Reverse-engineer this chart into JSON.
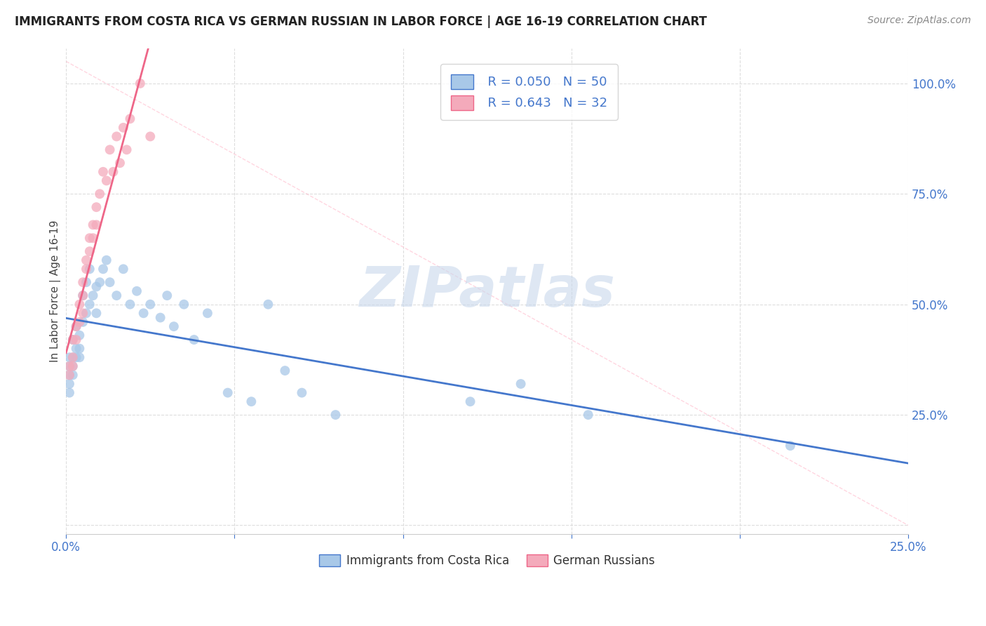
{
  "title": "IMMIGRANTS FROM COSTA RICA VS GERMAN RUSSIAN IN LABOR FORCE | AGE 16-19 CORRELATION CHART",
  "source": "Source: ZipAtlas.com",
  "ylabel": "In Labor Force | Age 16-19",
  "y_ticks": [
    0.0,
    0.25,
    0.5,
    0.75,
    1.0
  ],
  "y_tick_labels": [
    "",
    "25.0%",
    "50.0%",
    "75.0%",
    "100.0%"
  ],
  "x_range": [
    0.0,
    0.25
  ],
  "y_range": [
    -0.02,
    1.08
  ],
  "watermark": "ZIPatlas",
  "legend_R1": "R = 0.050",
  "legend_N1": "N = 50",
  "legend_R2": "R = 0.643",
  "legend_N2": "N = 32",
  "color_blue": "#A8C8E8",
  "color_pink": "#F4AABB",
  "color_blue_line": "#4477CC",
  "color_pink_line": "#EE6688",
  "color_text_blue": "#4477CC",
  "background": "#FFFFFF",
  "grid_color": "#DDDDDD",
  "costa_rica_x": [
    0.001,
    0.001,
    0.001,
    0.001,
    0.001,
    0.002,
    0.002,
    0.002,
    0.002,
    0.003,
    0.003,
    0.003,
    0.004,
    0.004,
    0.004,
    0.005,
    0.005,
    0.006,
    0.006,
    0.007,
    0.007,
    0.008,
    0.009,
    0.009,
    0.01,
    0.011,
    0.012,
    0.013,
    0.015,
    0.017,
    0.019,
    0.021,
    0.023,
    0.025,
    0.028,
    0.03,
    0.032,
    0.035,
    0.038,
    0.042,
    0.048,
    0.055,
    0.06,
    0.065,
    0.07,
    0.08,
    0.12,
    0.135,
    0.155,
    0.215
  ],
  "costa_rica_y": [
    0.38,
    0.36,
    0.34,
    0.32,
    0.3,
    0.42,
    0.38,
    0.36,
    0.34,
    0.45,
    0.4,
    0.38,
    0.43,
    0.4,
    0.38,
    0.52,
    0.46,
    0.55,
    0.48,
    0.58,
    0.5,
    0.52,
    0.54,
    0.48,
    0.55,
    0.58,
    0.6,
    0.55,
    0.52,
    0.58,
    0.5,
    0.53,
    0.48,
    0.5,
    0.47,
    0.52,
    0.45,
    0.5,
    0.42,
    0.48,
    0.3,
    0.28,
    0.5,
    0.35,
    0.3,
    0.25,
    0.28,
    0.32,
    0.25,
    0.18
  ],
  "german_russian_x": [
    0.001,
    0.001,
    0.002,
    0.002,
    0.002,
    0.003,
    0.003,
    0.004,
    0.004,
    0.005,
    0.005,
    0.005,
    0.006,
    0.006,
    0.007,
    0.007,
    0.008,
    0.008,
    0.009,
    0.009,
    0.01,
    0.011,
    0.012,
    0.013,
    0.014,
    0.015,
    0.016,
    0.017,
    0.018,
    0.019,
    0.022,
    0.025
  ],
  "german_russian_y": [
    0.36,
    0.34,
    0.42,
    0.38,
    0.36,
    0.45,
    0.42,
    0.5,
    0.46,
    0.55,
    0.52,
    0.48,
    0.6,
    0.58,
    0.65,
    0.62,
    0.68,
    0.65,
    0.72,
    0.68,
    0.75,
    0.8,
    0.78,
    0.85,
    0.8,
    0.88,
    0.82,
    0.9,
    0.85,
    0.92,
    1.0,
    0.88
  ]
}
